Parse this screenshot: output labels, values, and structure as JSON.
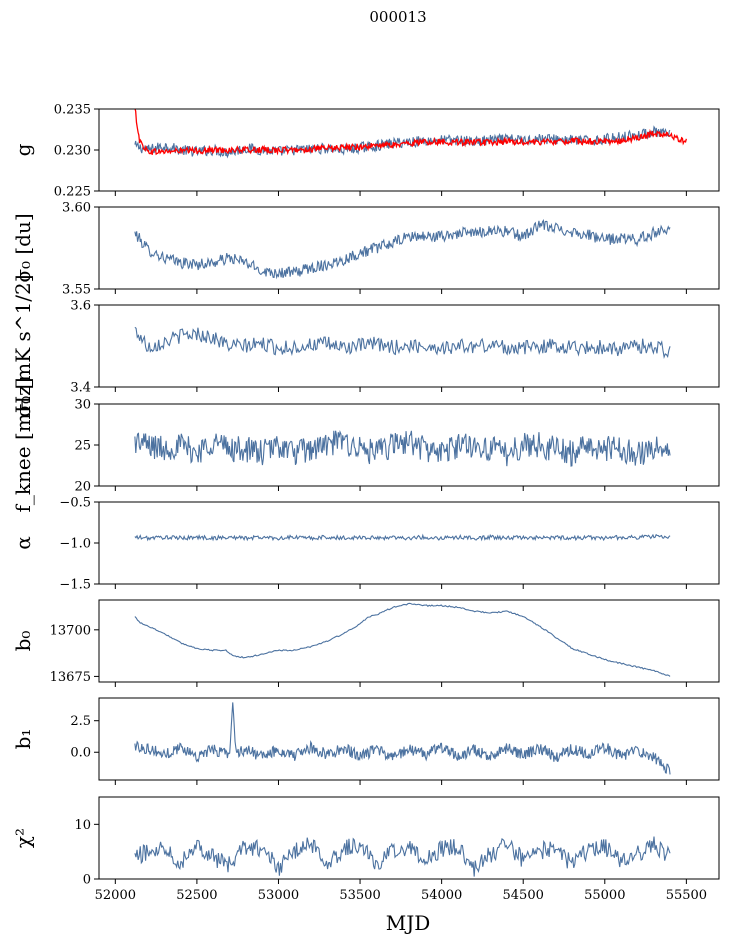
{
  "figure": {
    "title": "000013",
    "xlabel": "MJD"
  },
  "colors": {
    "series": "#4c72a0",
    "overlay": "#ff0000"
  },
  "chart_data": [
    {
      "type": "line",
      "ylabel": "g",
      "ylim": [
        0.225,
        0.235
      ],
      "yticks": [
        0.225,
        0.23,
        0.235
      ],
      "yticklabels": [
        "0.225",
        "0.230",
        "0.235"
      ],
      "xlim": [
        51900,
        55700
      ],
      "grid": false,
      "series": [
        {
          "color": "#4c72a0",
          "x": [
            52120,
            52200,
            52300,
            52400,
            52500,
            52600,
            52700,
            52800,
            52900,
            53000,
            53100,
            53200,
            53300,
            53400,
            53500,
            53600,
            53700,
            53800,
            53900,
            54000,
            54100,
            54200,
            54300,
            54400,
            54500,
            54600,
            54700,
            54800,
            54900,
            55000,
            55100,
            55200,
            55300,
            55400
          ],
          "y": [
            0.2305,
            0.23,
            0.2305,
            0.23,
            0.2298,
            0.23,
            0.2297,
            0.2302,
            0.23,
            0.2298,
            0.23,
            0.2301,
            0.2302,
            0.23,
            0.2303,
            0.2305,
            0.2308,
            0.231,
            0.2311,
            0.2312,
            0.2312,
            0.231,
            0.2312,
            0.2313,
            0.2312,
            0.2314,
            0.2313,
            0.2312,
            0.2311,
            0.2313,
            0.2316,
            0.2318,
            0.2322,
            0.2318
          ]
        },
        {
          "color": "#ff0000",
          "x": [
            52120,
            52150,
            52200,
            52300,
            52400,
            52500,
            52600,
            52700,
            52800,
            52900,
            53000,
            53100,
            53200,
            53300,
            53400,
            53500,
            53600,
            53700,
            53800,
            53900,
            54000,
            54100,
            54200,
            54300,
            54400,
            54500,
            54600,
            54700,
            54800,
            54900,
            55000,
            55100,
            55200,
            55300,
            55400,
            55500
          ],
          "y": [
            0.235,
            0.231,
            0.2298,
            0.2298,
            0.2299,
            0.2299,
            0.23,
            0.23,
            0.23,
            0.23,
            0.23,
            0.23,
            0.2301,
            0.2302,
            0.2303,
            0.2304,
            0.2305,
            0.2306,
            0.2308,
            0.231,
            0.231,
            0.231,
            0.2309,
            0.2309,
            0.231,
            0.231,
            0.231,
            0.231,
            0.2311,
            0.231,
            0.231,
            0.2312,
            0.2315,
            0.232,
            0.2318,
            0.231
          ]
        }
      ]
    },
    {
      "type": "line",
      "ylabel": "σ₀ [du]",
      "ylim": [
        3.55,
        3.6
      ],
      "yticks": [
        3.55,
        3.6
      ],
      "yticklabels": [
        "3.55",
        "3.60"
      ],
      "xlim": [
        51900,
        55700
      ],
      "grid": false,
      "series": [
        {
          "color": "#4c72a0",
          "x": [
            52120,
            52200,
            52300,
            52400,
            52500,
            52600,
            52700,
            52800,
            52900,
            53000,
            53100,
            53200,
            53300,
            53400,
            53500,
            53600,
            53700,
            53800,
            53900,
            54000,
            54100,
            54200,
            54300,
            54400,
            54500,
            54600,
            54700,
            54800,
            54900,
            55000,
            55100,
            55200,
            55300,
            55400
          ],
          "y": [
            3.584,
            3.574,
            3.569,
            3.566,
            3.565,
            3.566,
            3.569,
            3.566,
            3.561,
            3.56,
            3.56,
            3.563,
            3.565,
            3.568,
            3.572,
            3.575,
            3.578,
            3.582,
            3.582,
            3.582,
            3.584,
            3.584,
            3.586,
            3.585,
            3.582,
            3.589,
            3.587,
            3.585,
            3.583,
            3.58,
            3.581,
            3.58,
            3.584,
            3.588
          ]
        }
      ]
    },
    {
      "type": "line",
      "ylabel": "σ₀ [mK s^1/2]",
      "ylim": [
        3.4,
        3.6
      ],
      "yticks": [
        3.4,
        3.6
      ],
      "yticklabels": [
        "3.4",
        "3.6"
      ],
      "xlim": [
        51900,
        55700
      ],
      "grid": false,
      "series": [
        {
          "color": "#4c72a0",
          "x": [
            52120,
            52200,
            52300,
            52400,
            52500,
            52600,
            52700,
            52800,
            52900,
            53000,
            53100,
            53200,
            53300,
            53400,
            53500,
            53600,
            53700,
            53800,
            53900,
            54000,
            54100,
            54200,
            54300,
            54400,
            54500,
            54600,
            54700,
            54800,
            54900,
            55000,
            55100,
            55200,
            55300,
            55400
          ],
          "y": [
            3.54,
            3.498,
            3.51,
            3.525,
            3.53,
            3.52,
            3.5,
            3.5,
            3.505,
            3.495,
            3.497,
            3.503,
            3.505,
            3.497,
            3.5,
            3.505,
            3.497,
            3.5,
            3.5,
            3.495,
            3.5,
            3.498,
            3.503,
            3.497,
            3.495,
            3.5,
            3.5,
            3.498,
            3.495,
            3.498,
            3.492,
            3.5,
            3.5,
            3.485
          ]
        }
      ]
    },
    {
      "type": "line",
      "ylabel": "f_knee [mHz]",
      "ylim": [
        20,
        30
      ],
      "yticks": [
        20,
        25,
        30
      ],
      "yticklabels": [
        "20",
        "25",
        "30"
      ],
      "xlim": [
        51900,
        55700
      ],
      "grid": false,
      "series": [
        {
          "color": "#4c72a0",
          "x": [
            52120,
            52200,
            52300,
            52400,
            52500,
            52600,
            52700,
            52800,
            52900,
            53000,
            53100,
            53200,
            53300,
            53400,
            53500,
            53600,
            53700,
            53800,
            53900,
            54000,
            54100,
            54200,
            54300,
            54400,
            54500,
            54600,
            54700,
            54800,
            54900,
            55000,
            55100,
            55200,
            55300,
            55400
          ],
          "y": [
            25.5,
            25.0,
            24.5,
            25.0,
            24.0,
            25.5,
            24.5,
            24.5,
            24.0,
            25.0,
            24.0,
            24.5,
            25.0,
            25.5,
            24.5,
            24.0,
            25.0,
            25.5,
            24.5,
            24.0,
            25.0,
            25.0,
            24.5,
            24.0,
            25.0,
            25.0,
            24.5,
            24.0,
            25.0,
            24.5,
            24.5,
            24.0,
            24.5,
            24.5
          ]
        }
      ]
    },
    {
      "type": "line",
      "ylabel": "α",
      "ylim": [
        -1.5,
        -0.5
      ],
      "yticks": [
        -1.5,
        -1.0,
        -0.5
      ],
      "yticklabels": [
        "−1.5",
        "−1.0",
        "−0.5"
      ],
      "xlim": [
        51900,
        55700
      ],
      "grid": false,
      "series": [
        {
          "color": "#4c72a0",
          "x": [
            52120,
            52200,
            52300,
            52400,
            52500,
            52600,
            52700,
            52800,
            52900,
            53000,
            53100,
            53200,
            53300,
            53400,
            53500,
            53600,
            53700,
            53800,
            53900,
            54000,
            54100,
            54200,
            54300,
            54400,
            54500,
            54600,
            54700,
            54800,
            54900,
            55000,
            55100,
            55200,
            55300,
            55400
          ],
          "y": [
            -0.93,
            -0.94,
            -0.93,
            -0.94,
            -0.93,
            -0.94,
            -0.93,
            -0.94,
            -0.93,
            -0.94,
            -0.93,
            -0.94,
            -0.93,
            -0.94,
            -0.93,
            -0.94,
            -0.93,
            -0.94,
            -0.93,
            -0.94,
            -0.93,
            -0.94,
            -0.93,
            -0.94,
            -0.93,
            -0.94,
            -0.93,
            -0.94,
            -0.93,
            -0.94,
            -0.93,
            -0.93,
            -0.92,
            -0.93
          ]
        }
      ]
    },
    {
      "type": "line",
      "ylabel": "b₀",
      "ylim": [
        13672,
        13716
      ],
      "yticks": [
        13675,
        13700
      ],
      "yticklabels": [
        "13675",
        "13700"
      ],
      "xlim": [
        51900,
        55700
      ],
      "grid": false,
      "series": [
        {
          "color": "#4c72a0",
          "x": [
            52120,
            52150,
            52200,
            52300,
            52400,
            52500,
            52600,
            52680,
            52720,
            52800,
            52900,
            53000,
            53100,
            53200,
            53300,
            53400,
            53500,
            53550,
            53600,
            53700,
            53800,
            53900,
            54000,
            54100,
            54200,
            54300,
            54400,
            54500,
            54600,
            54700,
            54800,
            54900,
            55000,
            55100,
            55200,
            55300,
            55400
          ],
          "y": [
            13707,
            13704,
            13702,
            13698,
            13693,
            13690,
            13689,
            13689,
            13686,
            13685,
            13687,
            13689,
            13689,
            13691,
            13694,
            13698,
            13703,
            13707,
            13708,
            13712,
            13714,
            13713,
            13713,
            13712,
            13710,
            13709,
            13710,
            13707,
            13702,
            13696,
            13690,
            13687,
            13684,
            13682,
            13680,
            13678,
            13675
          ]
        }
      ]
    },
    {
      "type": "line",
      "ylabel": "b₁",
      "ylim": [
        -2.2,
        4.3
      ],
      "yticks": [
        0.0,
        2.5
      ],
      "yticklabels": [
        "0.0",
        "2.5"
      ],
      "xlim": [
        51900,
        55700
      ],
      "grid": false,
      "series": [
        {
          "color": "#4c72a0",
          "x": [
            52120,
            52200,
            52300,
            52400,
            52500,
            52600,
            52700,
            52720,
            52740,
            52800,
            52900,
            53000,
            53100,
            53200,
            53300,
            53400,
            53500,
            53600,
            53700,
            53800,
            53900,
            54000,
            54100,
            54200,
            54300,
            54400,
            54500,
            54600,
            54700,
            54800,
            54900,
            55000,
            55100,
            55200,
            55300,
            55400
          ],
          "y": [
            0.5,
            0.3,
            -0.2,
            0.4,
            -0.3,
            0.2,
            -0.1,
            4.0,
            -0.2,
            0.3,
            -0.4,
            0.2,
            -0.3,
            0.4,
            -0.2,
            0.3,
            -0.3,
            0.2,
            -0.4,
            0.3,
            -0.2,
            0.4,
            -0.3,
            0.2,
            -0.4,
            0.3,
            -0.2,
            0.3,
            -0.4,
            0.3,
            -0.2,
            0.4,
            -0.3,
            0.2,
            -0.4,
            -1.5
          ]
        }
      ]
    },
    {
      "type": "line",
      "ylabel": "χ²",
      "ylim": [
        0,
        15
      ],
      "yticks": [
        0,
        10
      ],
      "yticklabels": [
        "0",
        "10"
      ],
      "xlim": [
        51900,
        55700
      ],
      "grid": false,
      "series": [
        {
          "color": "#4c72a0",
          "x": [
            52120,
            52200,
            52300,
            52400,
            52500,
            52600,
            52700,
            52800,
            52900,
            53000,
            53100,
            53200,
            53300,
            53400,
            53500,
            53600,
            53700,
            53800,
            53900,
            54000,
            54100,
            54200,
            54300,
            54400,
            54500,
            54600,
            54700,
            54800,
            54900,
            55000,
            55100,
            55200,
            55300,
            55400
          ],
          "y": [
            4.0,
            5.0,
            6.0,
            3.0,
            6.5,
            4.0,
            2.5,
            6.0,
            5.5,
            2.0,
            5.0,
            6.5,
            3.0,
            5.5,
            6.5,
            2.5,
            5.0,
            6.0,
            3.5,
            5.5,
            6.0,
            2.0,
            4.5,
            6.5,
            3.5,
            5.0,
            6.0,
            2.5,
            5.5,
            6.0,
            3.0,
            4.5,
            6.5,
            4.0
          ]
        }
      ]
    }
  ],
  "shared_xaxis": {
    "xticks": [
      52000,
      52500,
      53000,
      53500,
      54000,
      54500,
      55000,
      55500
    ],
    "xticklabels": [
      "52000",
      "52500",
      "53000",
      "53500",
      "54000",
      "54500",
      "55000",
      "55500"
    ]
  }
}
